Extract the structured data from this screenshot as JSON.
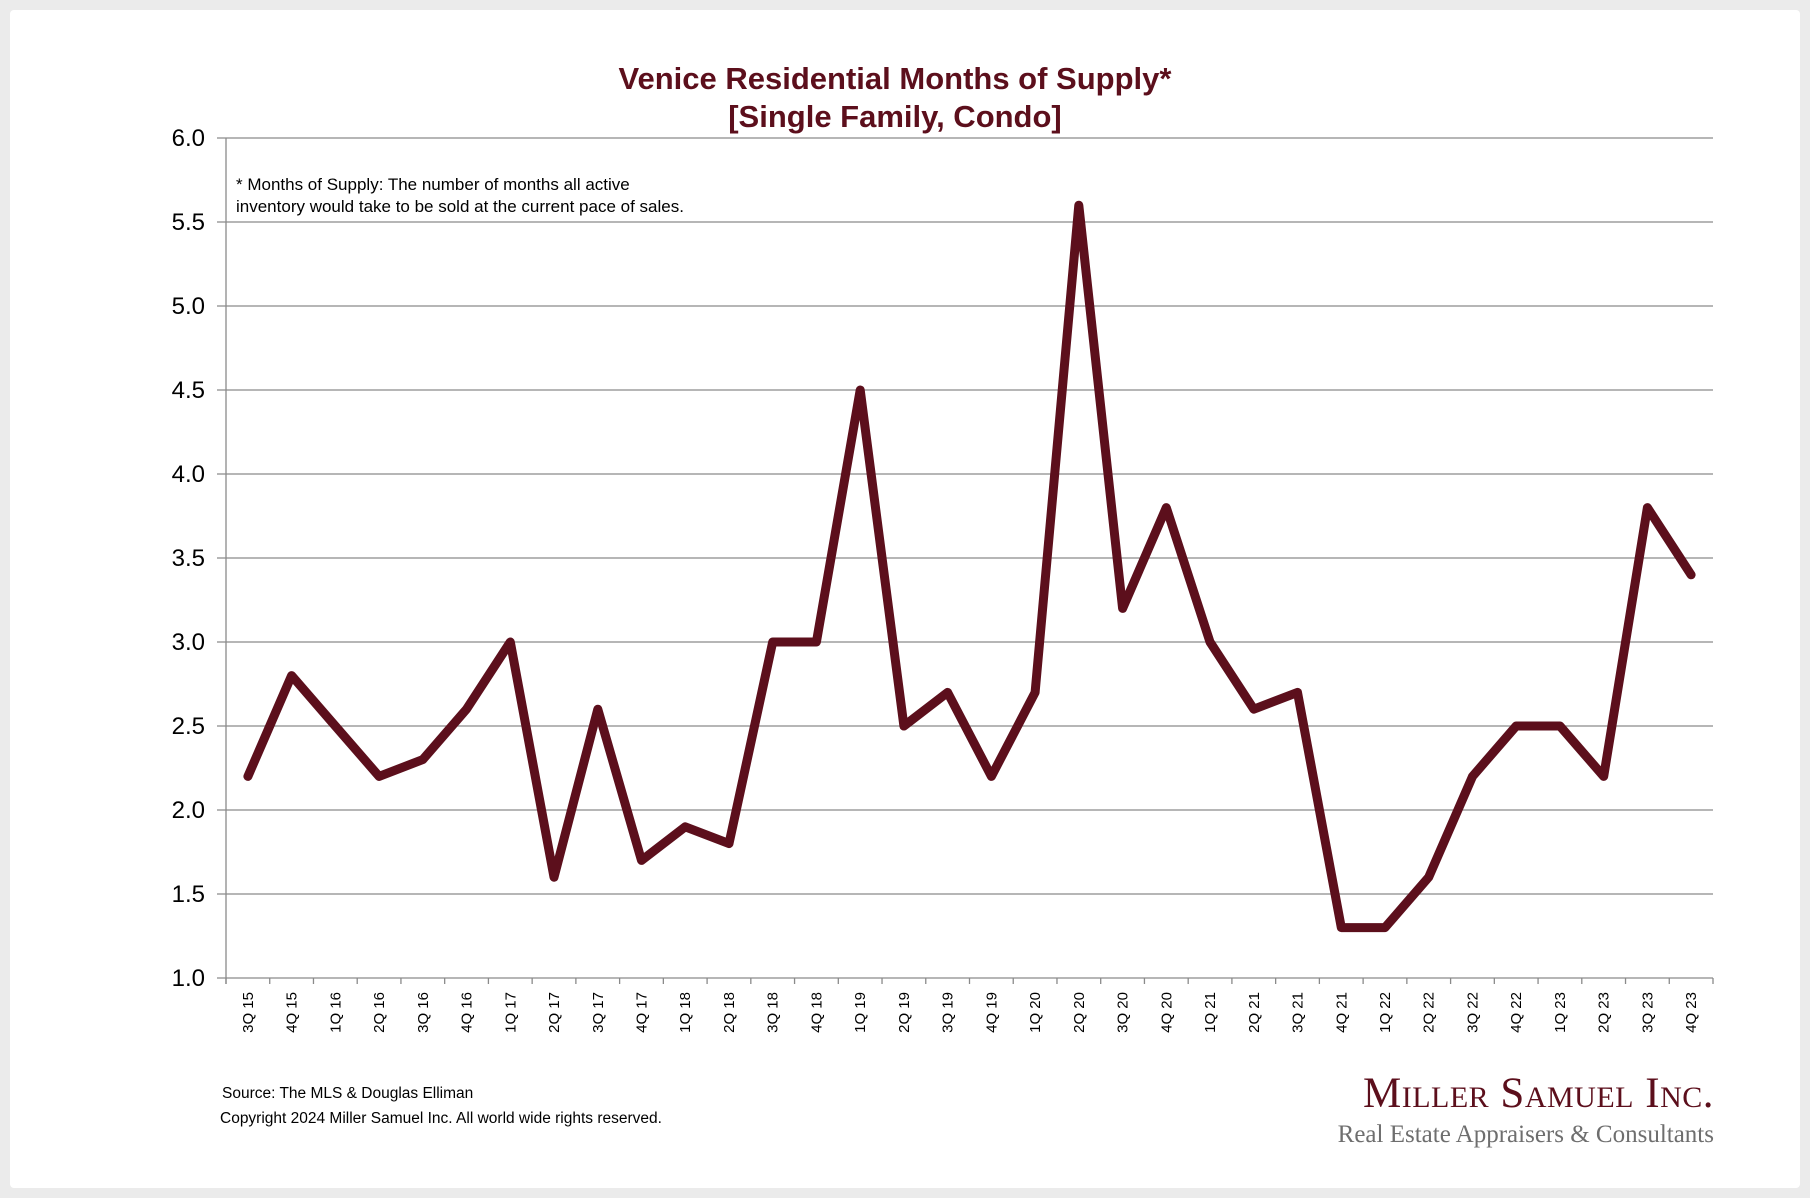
{
  "chart_data": {
    "type": "line",
    "title": "Venice Residential Months of Supply*",
    "subtitle": "[Single Family, Condo]",
    "xlabel": "",
    "ylabel": "",
    "ylim": [
      1.0,
      6.0
    ],
    "yticks": [
      "1.0",
      "1.5",
      "2.0",
      "2.5",
      "3.0",
      "3.5",
      "4.0",
      "4.5",
      "5.0",
      "5.5",
      "6.0"
    ],
    "grid": true,
    "legend": "none",
    "categories": [
      "3Q 15",
      "4Q 15",
      "1Q 16",
      "2Q 16",
      "3Q 16",
      "4Q 16",
      "1Q 17",
      "2Q 17",
      "3Q 17",
      "4Q 17",
      "1Q 18",
      "2Q 18",
      "3Q 18",
      "4Q 18",
      "1Q 19",
      "2Q 19",
      "3Q 19",
      "4Q 19",
      "1Q 20",
      "2Q 20",
      "3Q 20",
      "4Q 20",
      "1Q 21",
      "2Q 21",
      "3Q 21",
      "4Q 21",
      "1Q 22",
      "2Q 22",
      "3Q 22",
      "4Q 22",
      "1Q 23",
      "2Q 23",
      "3Q 23",
      "4Q 23"
    ],
    "series": [
      {
        "name": "Months of Supply",
        "color": "#5c0f1c",
        "values": [
          2.2,
          2.8,
          2.5,
          2.2,
          2.3,
          2.6,
          3.0,
          1.6,
          2.6,
          1.7,
          1.9,
          1.8,
          3.0,
          3.0,
          4.5,
          2.5,
          2.7,
          2.2,
          2.7,
          5.6,
          3.2,
          3.8,
          3.0,
          2.6,
          2.7,
          1.3,
          1.3,
          1.6,
          2.2,
          2.5,
          2.5,
          2.2,
          3.8,
          3.4
        ]
      }
    ],
    "annotation": [
      "* Months of Supply: The number of months all active",
      "inventory would take to be sold at the current pace of sales."
    ]
  },
  "footer": {
    "source": "Source: The MLS & Douglas Elliman",
    "copyright": "Copyright 2024 Miller Samuel Inc.  All world wide rights reserved."
  },
  "logo": {
    "name": "Miller Samuel Inc.",
    "tagline": "Real Estate Appraisers & Consultants"
  },
  "colors": {
    "brand": "#5c0f1c",
    "gridline": "#8a8a8a",
    "background": "#ebebeb"
  }
}
